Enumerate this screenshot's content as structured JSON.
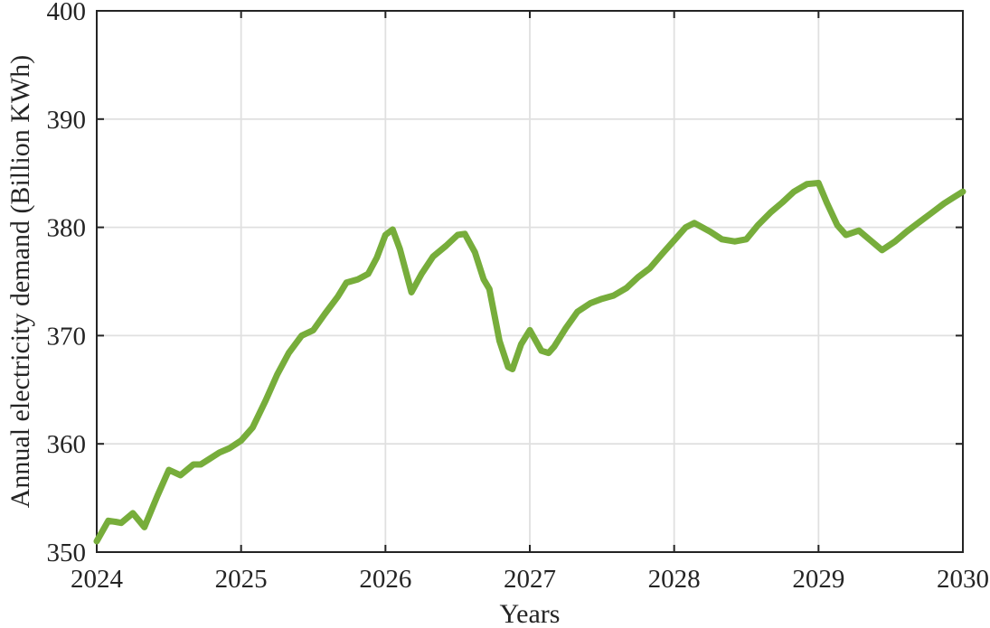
{
  "chart_data": {
    "type": "line",
    "xlabel": "Years",
    "ylabel": "Annual electricity demand (Billion KWh)",
    "xlim": [
      2024,
      2030
    ],
    "ylim": [
      350,
      400
    ],
    "x_ticks": [
      2024,
      2025,
      2026,
      2027,
      2028,
      2029,
      2030
    ],
    "y_ticks": [
      350,
      360,
      370,
      380,
      390,
      400
    ],
    "grid": true,
    "legend_position": "none",
    "series": [
      {
        "name": "annual-electricity-demand",
        "color": "#77ad3b",
        "x": [
          2024.0,
          2024.08,
          2024.13,
          2024.17,
          2024.25,
          2024.33,
          2024.42,
          2024.5,
          2024.58,
          2024.67,
          2024.72,
          2024.78,
          2024.85,
          2024.92,
          2025.0,
          2025.08,
          2025.17,
          2025.25,
          2025.33,
          2025.42,
          2025.5,
          2025.58,
          2025.67,
          2025.73,
          2025.81,
          2025.88,
          2025.94,
          2026.0,
          2026.05,
          2026.1,
          2026.18,
          2026.25,
          2026.33,
          2026.42,
          2026.5,
          2026.55,
          2026.62,
          2026.68,
          2026.72,
          2026.79,
          2026.85,
          2026.88,
          2026.94,
          2027.0,
          2027.08,
          2027.13,
          2027.17,
          2027.25,
          2027.33,
          2027.42,
          2027.5,
          2027.58,
          2027.67,
          2027.75,
          2027.83,
          2027.92,
          2028.0,
          2028.08,
          2028.14,
          2028.25,
          2028.33,
          2028.42,
          2028.5,
          2028.58,
          2028.67,
          2028.75,
          2028.83,
          2028.92,
          2029.0,
          2029.06,
          2029.13,
          2029.19,
          2029.28,
          2029.36,
          2029.44,
          2029.53,
          2029.61,
          2029.7,
          2029.78,
          2029.87,
          2029.94,
          2030.0
        ],
        "y": [
          351.0,
          352.9,
          352.8,
          352.7,
          353.6,
          352.3,
          355.2,
          357.6,
          357.1,
          358.1,
          358.1,
          358.6,
          359.2,
          359.6,
          360.3,
          361.5,
          364.0,
          366.4,
          368.4,
          370.0,
          370.5,
          372.0,
          373.6,
          374.9,
          375.2,
          375.7,
          377.2,
          379.3,
          379.8,
          378.0,
          374.0,
          375.7,
          377.3,
          378.3,
          379.3,
          379.4,
          377.7,
          375.2,
          374.3,
          369.5,
          367.1,
          366.9,
          369.2,
          370.5,
          368.6,
          368.4,
          369.0,
          370.7,
          372.2,
          373.0,
          373.4,
          373.7,
          374.4,
          375.4,
          376.2,
          377.6,
          378.8,
          380.0,
          380.4,
          379.6,
          378.9,
          378.7,
          378.9,
          380.2,
          381.4,
          382.3,
          383.3,
          384.0,
          384.1,
          382.2,
          380.2,
          379.3,
          379.7,
          378.8,
          377.9,
          378.7,
          379.6,
          380.5,
          381.3,
          382.2,
          382.8,
          383.3
        ]
      }
    ]
  },
  "colors": {
    "line_green": "#77ad3b",
    "grid": "#e0e0e0",
    "axis": "#242424",
    "background": "#ffffff"
  }
}
